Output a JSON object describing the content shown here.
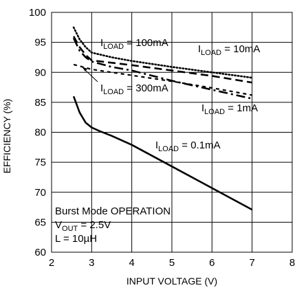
{
  "chart_data": {
    "type": "line",
    "xlabel": "INPUT VOLTAGE (V)",
    "ylabel": "EFFICIENCY (%)",
    "xlim": [
      2,
      8
    ],
    "ylim": [
      60,
      100
    ],
    "xticks": [
      "2",
      "3",
      "4",
      "5",
      "6",
      "7",
      "8"
    ],
    "yticks": [
      "60",
      "65",
      "70",
      "75",
      "80",
      "85",
      "90",
      "95",
      "100"
    ],
    "grid": true,
    "series": [
      {
        "name": "ILOAD = 100mA",
        "style": "dotted",
        "x": [
          2.55,
          2.7,
          2.85,
          3.0,
          3.5,
          4.0,
          5.0,
          6.0,
          7.0
        ],
        "y": [
          97.5,
          95.5,
          94.2,
          93.3,
          92.5,
          91.9,
          90.9,
          90.0,
          89.1
        ]
      },
      {
        "name": "ILOAD = 10mA",
        "style": "dashed",
        "x": [
          2.55,
          2.7,
          2.85,
          3.0,
          3.5,
          4.0,
          5.0,
          6.0,
          7.0
        ],
        "y": [
          96.0,
          94.2,
          92.9,
          92.0,
          91.6,
          91.2,
          90.3,
          89.4,
          88.3
        ]
      },
      {
        "name": "ILOAD = 300mA",
        "style": "short-dash",
        "x": [
          2.55,
          3.0,
          3.5,
          4.0,
          5.0,
          6.0,
          7.0
        ],
        "y": [
          91.3,
          90.5,
          90.0,
          89.5,
          88.5,
          87.4,
          86.2
        ]
      },
      {
        "name": "ILOAD = 1mA",
        "style": "dash-dot",
        "x": [
          2.55,
          2.7,
          2.85,
          3.0,
          3.5,
          4.0,
          5.0,
          6.0,
          7.0
        ],
        "y": [
          95.7,
          93.6,
          92.5,
          91.8,
          90.9,
          90.3,
          88.6,
          87.1,
          85.6
        ]
      },
      {
        "name": "ILOAD = 0.1mA",
        "style": "solid",
        "x": [
          2.55,
          2.7,
          2.85,
          3.0,
          3.2,
          3.5,
          4.0,
          5.0,
          6.0,
          7.0
        ],
        "y": [
          86.0,
          83.3,
          81.6,
          80.8,
          80.2,
          79.4,
          77.9,
          74.3,
          70.7,
          67.1
        ]
      }
    ],
    "labels": [
      {
        "id": "l100",
        "main": "I",
        "sub": "LOAD",
        "rest": " = 100mA"
      },
      {
        "id": "l10",
        "main": "I",
        "sub": "LOAD",
        "rest": " = 10mA"
      },
      {
        "id": "l300",
        "main": "I",
        "sub": "LOAD",
        "rest": " = 300mA"
      },
      {
        "id": "l1",
        "main": "I",
        "sub": "LOAD",
        "rest": " = 1mA"
      },
      {
        "id": "l01",
        "main": "I",
        "sub": "LOAD",
        "rest": " = 0.1mA"
      }
    ],
    "notes": {
      "line1": "Burst Mode OPERATION",
      "line2_main": "V",
      "line2_sub": "OUT",
      "line2_rest": " = 2.5V",
      "line3": "L = 10µH"
    }
  }
}
